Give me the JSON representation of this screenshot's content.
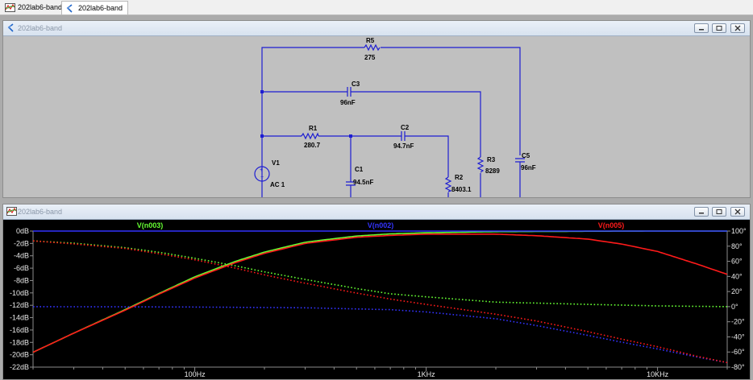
{
  "tabs": [
    {
      "label": "202lab6-band",
      "icon": "waveform-icon",
      "active": false
    },
    {
      "label": "202lab6-band",
      "icon": "schematic-icon",
      "active": true
    }
  ],
  "schematic_window": {
    "title": "202lab6-band",
    "components": {
      "R5": {
        "name": "R5",
        "value": "275"
      },
      "C3": {
        "name": "C3",
        "value": "96nF"
      },
      "R1": {
        "name": "R1",
        "value": "280.7"
      },
      "C2": {
        "name": "C2",
        "value": "94.7nF"
      },
      "V1": {
        "name": "V1",
        "value": "AC 1"
      },
      "C1": {
        "name": "C1",
        "value": "94.5nF"
      },
      "R2": {
        "name": "R2",
        "value": "8403.1"
      },
      "R3": {
        "name": "R3",
        "value": "8289"
      },
      "C5": {
        "name": "C5",
        "value": "96nF"
      }
    }
  },
  "plot_window": {
    "title": "202lab6-band",
    "colors": {
      "background": "#000000",
      "axis": "#8c8c8c"
    },
    "chart_data": {
      "type": "line",
      "x_scale": "log",
      "xlim": [
        20,
        20000
      ],
      "ylim_left": [
        -22,
        0
      ],
      "ylim_right": [
        -80,
        100
      ],
      "x_ticks": [
        {
          "value": 100,
          "label": "100Hz"
        },
        {
          "value": 1000,
          "label": "1KHz"
        },
        {
          "value": 10000,
          "label": "10KHz"
        }
      ],
      "y_left_ticks": [
        {
          "value": 0,
          "label": "0dB"
        },
        {
          "value": -2,
          "label": "-2dB"
        },
        {
          "value": -4,
          "label": "-4dB"
        },
        {
          "value": -6,
          "label": "-6dB"
        },
        {
          "value": -8,
          "label": "-8dB"
        },
        {
          "value": -10,
          "label": "-10dB"
        },
        {
          "value": -12,
          "label": "-12dB"
        },
        {
          "value": -14,
          "label": "-14dB"
        },
        {
          "value": -16,
          "label": "-16dB"
        },
        {
          "value": -18,
          "label": "-18dB"
        },
        {
          "value": -20,
          "label": "-20dB"
        },
        {
          "value": -22,
          "label": "-22dB"
        }
      ],
      "y_right_ticks": [
        {
          "value": 100,
          "label": "100°"
        },
        {
          "value": 80,
          "label": "80°"
        },
        {
          "value": 60,
          "label": "60°"
        },
        {
          "value": 40,
          "label": "40°"
        },
        {
          "value": 20,
          "label": "20°"
        },
        {
          "value": 0,
          "label": "0°"
        },
        {
          "value": -20,
          "label": "-20°"
        },
        {
          "value": -40,
          "label": "-40°"
        },
        {
          "value": -60,
          "label": "-60°"
        },
        {
          "value": -80,
          "label": "-80°"
        }
      ],
      "series": [
        {
          "name": "V(n003)",
          "color": "#66ff33",
          "magnitude_db": [
            [
              20,
              -19.6
            ],
            [
              30,
              -16.5
            ],
            [
              50,
              -12.7
            ],
            [
              70,
              -10.1
            ],
            [
              100,
              -7.4
            ],
            [
              150,
              -4.9
            ],
            [
              200,
              -3.4
            ],
            [
              300,
              -1.8
            ],
            [
              500,
              -0.8
            ],
            [
              700,
              -0.45
            ],
            [
              1000,
              -0.28
            ],
            [
              2000,
              -0.1
            ],
            [
              5000,
              -0.03
            ],
            [
              10000,
              0
            ],
            [
              20000,
              0
            ]
          ],
          "phase_deg": [
            [
              20,
              87
            ],
            [
              30,
              84
            ],
            [
              50,
              78
            ],
            [
              70,
              72
            ],
            [
              100,
              64
            ],
            [
              150,
              54
            ],
            [
              200,
              46
            ],
            [
              300,
              36
            ],
            [
              500,
              24
            ],
            [
              700,
              17
            ],
            [
              1000,
              13
            ],
            [
              2000,
              6
            ],
            [
              5000,
              3
            ],
            [
              10000,
              1
            ],
            [
              20000,
              0
            ]
          ]
        },
        {
          "name": "V(n002)",
          "color": "#3333ff",
          "magnitude_db": [
            [
              20,
              0
            ],
            [
              100,
              0
            ],
            [
              1000,
              0
            ],
            [
              10000,
              0
            ],
            [
              20000,
              0
            ]
          ],
          "phase_deg": [
            [
              20,
              0
            ],
            [
              100,
              -0.5
            ],
            [
              300,
              -1.5
            ],
            [
              700,
              -4
            ],
            [
              1000,
              -7
            ],
            [
              2000,
              -16
            ],
            [
              3000,
              -25
            ],
            [
              5000,
              -38
            ],
            [
              7000,
              -47
            ],
            [
              10000,
              -56
            ],
            [
              15000,
              -67
            ],
            [
              20000,
              -74
            ]
          ]
        },
        {
          "name": "V(n005)",
          "color": "#ff1a1a",
          "magnitude_db": [
            [
              20,
              -19.6
            ],
            [
              30,
              -16.5
            ],
            [
              50,
              -12.8
            ],
            [
              70,
              -10.2
            ],
            [
              100,
              -7.6
            ],
            [
              150,
              -5.1
            ],
            [
              200,
              -3.6
            ],
            [
              300,
              -2.0
            ],
            [
              500,
              -1.0
            ],
            [
              700,
              -0.7
            ],
            [
              1000,
              -0.5
            ],
            [
              2000,
              -0.5
            ],
            [
              3000,
              -0.75
            ],
            [
              5000,
              -1.3
            ],
            [
              7000,
              -2.1
            ],
            [
              10000,
              -3.3
            ],
            [
              15000,
              -5.4
            ],
            [
              20000,
              -7.0
            ]
          ],
          "phase_deg": [
            [
              20,
              87
            ],
            [
              30,
              83
            ],
            [
              50,
              77
            ],
            [
              70,
              70
            ],
            [
              100,
              62
            ],
            [
              150,
              51
            ],
            [
              200,
              42
            ],
            [
              300,
              31
            ],
            [
              500,
              18
            ],
            [
              700,
              10
            ],
            [
              1000,
              3
            ],
            [
              2000,
              -10
            ],
            [
              3000,
              -19
            ],
            [
              5000,
              -33
            ],
            [
              7000,
              -43
            ],
            [
              10000,
              -53
            ],
            [
              15000,
              -66
            ],
            [
              20000,
              -74
            ]
          ]
        }
      ]
    }
  }
}
